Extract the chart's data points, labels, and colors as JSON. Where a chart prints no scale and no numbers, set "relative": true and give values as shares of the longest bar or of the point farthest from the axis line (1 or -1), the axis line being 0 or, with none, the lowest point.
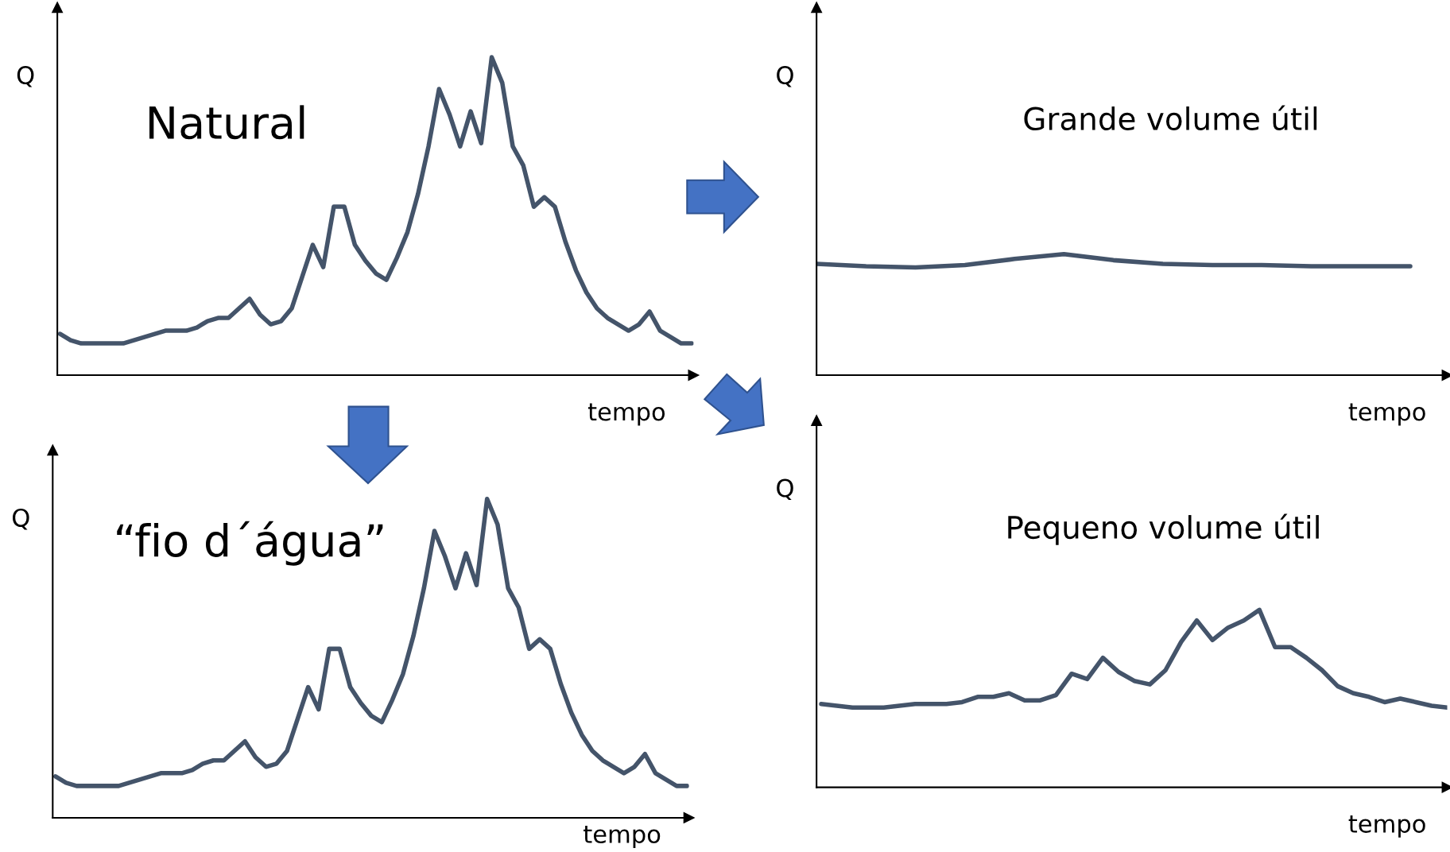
{
  "chart_data": [
    {
      "type": "line",
      "title": "Natural",
      "xlabel": "tempo",
      "ylabel": "Q",
      "relative": true,
      "tick_labels": false,
      "categories": [
        null,
        null,
        null,
        null,
        null,
        null,
        null,
        null,
        null,
        null,
        null,
        null,
        null,
        null,
        null,
        null,
        null,
        null,
        null,
        null,
        null,
        null,
        null,
        null,
        null,
        null,
        null,
        null,
        null,
        null,
        null,
        null,
        null,
        null,
        null,
        null,
        null,
        null,
        null,
        null,
        null,
        null,
        null,
        null,
        null,
        null,
        null,
        null,
        null,
        null,
        null,
        null,
        null,
        null,
        null,
        null,
        null,
        null,
        null,
        null,
        null
      ],
      "series": [
        {
          "color": "#44546a",
          "values": [
            0.13,
            0.11,
            0.1,
            0.1,
            0.1,
            0.1,
            0.1,
            0.11,
            0.12,
            0.13,
            0.14,
            0.14,
            0.14,
            0.15,
            0.17,
            0.18,
            0.18,
            0.21,
            0.24,
            0.19,
            0.16,
            0.17,
            0.21,
            0.31,
            0.41,
            0.34,
            0.53,
            0.53,
            0.41,
            0.36,
            0.32,
            0.3,
            0.37,
            0.45,
            0.57,
            0.72,
            0.9,
            0.82,
            0.72,
            0.83,
            0.73,
            1.0,
            0.92,
            0.72,
            0.66,
            0.53,
            0.56,
            0.53,
            0.42,
            0.33,
            0.26,
            0.21,
            0.18,
            0.16,
            0.14,
            0.16,
            0.2,
            0.14,
            0.12,
            0.1,
            0.1
          ]
        }
      ]
    },
    {
      "type": "line",
      "title": "“fio d´água”",
      "xlabel": "tempo",
      "ylabel": "Q",
      "relative": true,
      "tick_labels": false,
      "categories": [
        null,
        null,
        null,
        null,
        null,
        null,
        null,
        null,
        null,
        null,
        null,
        null,
        null,
        null,
        null,
        null,
        null,
        null,
        null,
        null,
        null,
        null,
        null,
        null,
        null,
        null,
        null,
        null,
        null,
        null,
        null,
        null,
        null,
        null,
        null,
        null,
        null,
        null,
        null,
        null,
        null,
        null,
        null,
        null,
        null,
        null,
        null,
        null,
        null,
        null,
        null,
        null,
        null,
        null,
        null,
        null,
        null,
        null,
        null,
        null,
        null
      ],
      "series": [
        {
          "color": "#44546a",
          "values": [
            0.13,
            0.11,
            0.1,
            0.1,
            0.1,
            0.1,
            0.1,
            0.11,
            0.12,
            0.13,
            0.14,
            0.14,
            0.14,
            0.15,
            0.17,
            0.18,
            0.18,
            0.21,
            0.24,
            0.19,
            0.16,
            0.17,
            0.21,
            0.31,
            0.41,
            0.34,
            0.53,
            0.53,
            0.41,
            0.36,
            0.32,
            0.3,
            0.37,
            0.45,
            0.57,
            0.72,
            0.9,
            0.82,
            0.72,
            0.83,
            0.73,
            1.0,
            0.92,
            0.72,
            0.66,
            0.53,
            0.56,
            0.53,
            0.42,
            0.33,
            0.26,
            0.21,
            0.18,
            0.16,
            0.14,
            0.16,
            0.2,
            0.14,
            0.12,
            0.1,
            0.1
          ]
        }
      ]
    },
    {
      "type": "line",
      "title": "Grande volume útil",
      "xlabel": "tempo",
      "ylabel": "Q",
      "relative": true,
      "tick_labels": false,
      "categories": [
        null,
        null,
        null,
        null,
        null,
        null,
        null,
        null,
        null,
        null,
        null,
        null,
        null
      ],
      "series": [
        {
          "color": "#44546a",
          "values": [
            0.92,
            0.9,
            0.89,
            0.91,
            0.96,
            1.0,
            0.95,
            0.92,
            0.91,
            0.91,
            0.9,
            0.9,
            0.9
          ]
        }
      ]
    },
    {
      "type": "line",
      "title": "Pequeno volume útil",
      "xlabel": "tempo",
      "ylabel": "Q",
      "relative": true,
      "tick_labels": false,
      "categories": [
        null,
        null,
        null,
        null,
        null,
        null,
        null,
        null,
        null,
        null,
        null,
        null,
        null,
        null,
        null,
        null,
        null,
        null,
        null,
        null,
        null,
        null,
        null,
        null,
        null,
        null,
        null,
        null,
        null,
        null,
        null,
        null,
        null,
        null,
        null,
        null,
        null,
        null,
        null,
        null,
        null
      ],
      "series": [
        {
          "color": "#44546a",
          "values": [
            0.47,
            0.46,
            0.45,
            0.45,
            0.45,
            0.46,
            0.47,
            0.47,
            0.47,
            0.48,
            0.51,
            0.51,
            0.53,
            0.49,
            0.49,
            0.52,
            0.64,
            0.61,
            0.73,
            0.65,
            0.6,
            0.58,
            0.66,
            0.82,
            0.94,
            0.83,
            0.9,
            0.94,
            1.0,
            0.79,
            0.79,
            0.73,
            0.66,
            0.57,
            0.53,
            0.51,
            0.48,
            0.5,
            0.48,
            0.46,
            0.45
          ]
        }
      ]
    }
  ]
}
